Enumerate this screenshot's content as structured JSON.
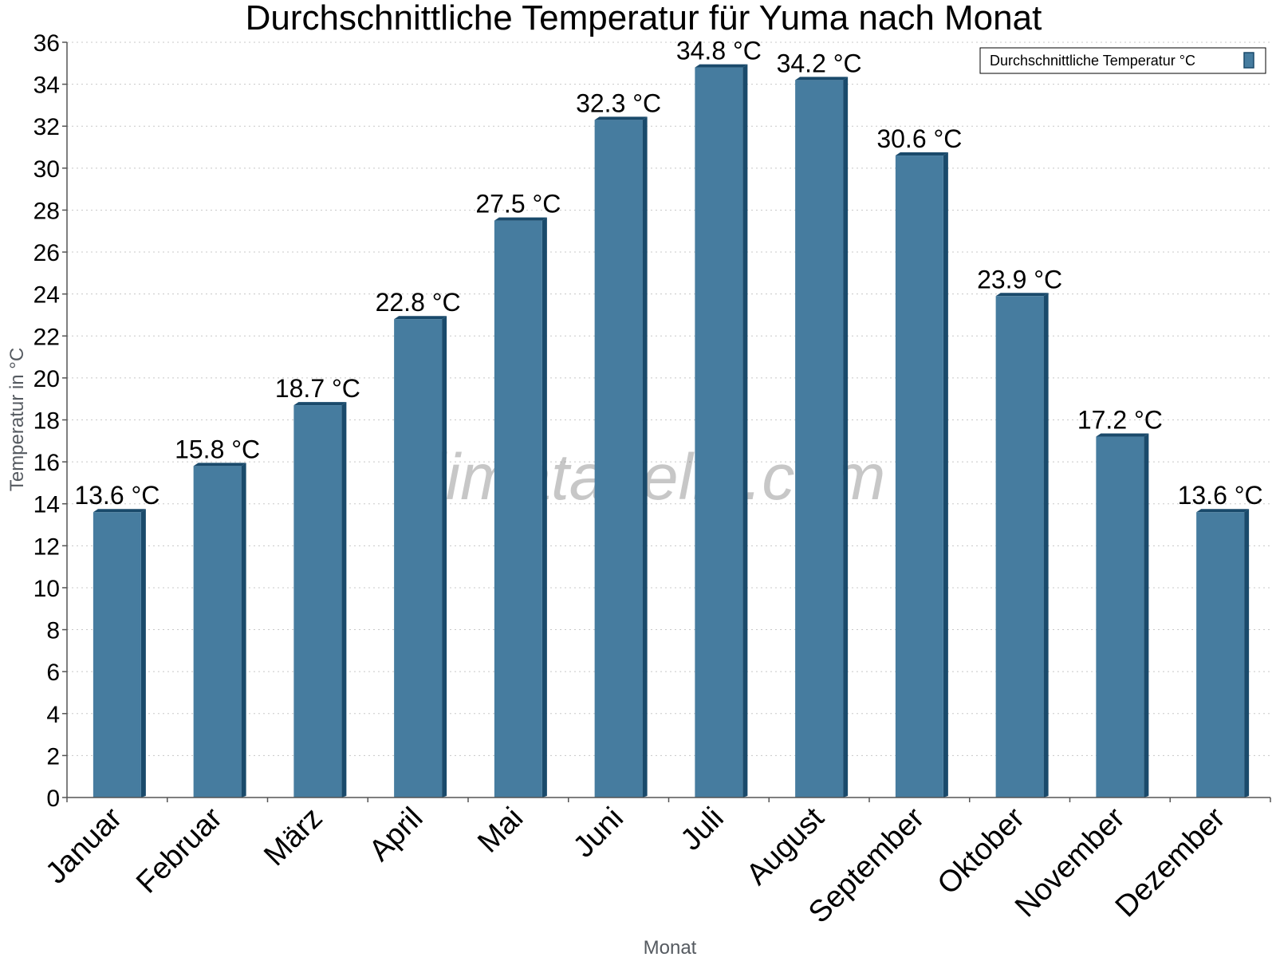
{
  "chart_data": {
    "type": "bar",
    "title": "Durchschnittliche Temperatur für Yuma nach Monat",
    "xlabel": "Monat",
    "ylabel": "Temperatur in °C",
    "categories": [
      "Januar",
      "Februar",
      "März",
      "April",
      "Mai",
      "Juni",
      "Juli",
      "August",
      "September",
      "Oktober",
      "November",
      "Dezember"
    ],
    "series": [
      {
        "name": "Durchschnittliche Temperatur °C",
        "values": [
          13.6,
          15.8,
          18.7,
          22.8,
          27.5,
          32.3,
          34.8,
          34.2,
          30.6,
          23.9,
          17.2,
          13.6
        ]
      }
    ],
    "data_labels": [
      "13.6 °C",
      "15.8 °C",
      "18.7 °C",
      "22.8 °C",
      "27.5 °C",
      "32.3 °C",
      "34.8 °C",
      "34.2 °C",
      "30.6 °C",
      "23.9 °C",
      "17.2 °C",
      "13.6 °C"
    ],
    "ylim": [
      0,
      36
    ],
    "yticks": [
      0,
      2,
      4,
      6,
      8,
      10,
      12,
      14,
      16,
      18,
      20,
      22,
      24,
      26,
      28,
      30,
      32,
      34,
      36
    ],
    "grid": true,
    "legend_position": "top-right",
    "watermark": "klimatabelle.com",
    "colors": {
      "bar": "#467c9f",
      "bar_edge": "#1a4a6b",
      "grid": "#c8c8c8",
      "axis": "#555555"
    }
  }
}
